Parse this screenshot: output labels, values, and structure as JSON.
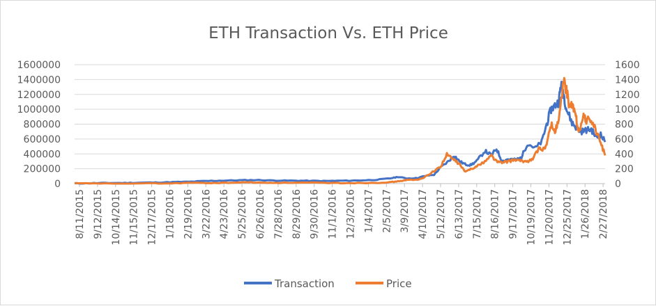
{
  "chart_data": {
    "type": "line",
    "title": "ETH Transaction Vs. ETH Price",
    "xlabel": "",
    "ylabel": "",
    "y2label": "",
    "x_tick_labels": [
      "8/11/2015",
      "9/12/2015",
      "10/14/2015",
      "11/15/2015",
      "12/17/2015",
      "1/18/2016",
      "2/19/2016",
      "3/22/2016",
      "4/23/2016",
      "5/25/2016",
      "6/26/2016",
      "7/28/2016",
      "8/29/2016",
      "9/30/2016",
      "11/1/2016",
      "12/3/2016",
      "1/4/2017",
      "2/5/2017",
      "3/9/2017",
      "4/10/2017",
      "5/12/2017",
      "6/13/2017",
      "7/15/2017",
      "8/16/2017",
      "9/17/2017",
      "10/19/2017",
      "11/20/2017",
      "12/25/2017",
      "1/26/2018",
      "2/27/2018"
    ],
    "x_range": [
      "2015-08-07",
      "2018-03-26"
    ],
    "ylim": [
      0,
      1600000
    ],
    "y_ticks": [
      "0",
      "200000",
      "400000",
      "600000",
      "800000",
      "1000000",
      "1200000",
      "1400000",
      "1600000"
    ],
    "y2lim": [
      0,
      1600
    ],
    "y2_ticks": [
      "0",
      "200",
      "400",
      "600",
      "800",
      "1000",
      "1200",
      "1400",
      "1600"
    ],
    "legend_position": "bottom",
    "grid": "horizontal",
    "series": [
      {
        "name": "Transaction",
        "axis": "left",
        "color": "#4472c4",
        "points": [
          [
            "2015-08-07",
            2000
          ],
          [
            "2015-09-01",
            5000
          ],
          [
            "2015-10-01",
            8000
          ],
          [
            "2015-11-01",
            9000
          ],
          [
            "2015-12-01",
            12000
          ],
          [
            "2016-01-01",
            15000
          ],
          [
            "2016-02-01",
            20000
          ],
          [
            "2016-03-01",
            25000
          ],
          [
            "2016-04-01",
            35000
          ],
          [
            "2016-05-01",
            40000
          ],
          [
            "2016-06-01",
            45000
          ],
          [
            "2016-07-01",
            48000
          ],
          [
            "2016-08-01",
            42000
          ],
          [
            "2016-09-01",
            40000
          ],
          [
            "2016-10-01",
            38000
          ],
          [
            "2016-11-01",
            35000
          ],
          [
            "2016-12-01",
            38000
          ],
          [
            "2017-01-01",
            42000
          ],
          [
            "2017-02-01",
            50000
          ],
          [
            "2017-03-01",
            70000
          ],
          [
            "2017-03-15",
            90000
          ],
          [
            "2017-04-01",
            70000
          ],
          [
            "2017-04-20",
            75000
          ],
          [
            "2017-05-01",
            100000
          ],
          [
            "2017-05-20",
            120000
          ],
          [
            "2017-06-01",
            220000
          ],
          [
            "2017-06-15",
            300000
          ],
          [
            "2017-06-25",
            380000
          ],
          [
            "2017-07-05",
            300000
          ],
          [
            "2017-07-15",
            260000
          ],
          [
            "2017-07-25",
            250000
          ],
          [
            "2017-08-05",
            300000
          ],
          [
            "2017-08-20",
            440000
          ],
          [
            "2017-09-01",
            380000
          ],
          [
            "2017-09-10",
            470000
          ],
          [
            "2017-09-20",
            300000
          ],
          [
            "2017-10-01",
            330000
          ],
          [
            "2017-10-15",
            320000
          ],
          [
            "2017-10-25",
            350000
          ],
          [
            "2017-11-05",
            540000
          ],
          [
            "2017-11-20",
            480000
          ],
          [
            "2017-12-01",
            560000
          ],
          [
            "2017-12-10",
            800000
          ],
          [
            "2017-12-18",
            1000000
          ],
          [
            "2017-12-25",
            1050000
          ],
          [
            "2018-01-01",
            1100000
          ],
          [
            "2018-01-05",
            1350000
          ],
          [
            "2018-01-10",
            1200000
          ],
          [
            "2018-01-15",
            1000000
          ],
          [
            "2018-01-25",
            820000
          ],
          [
            "2018-02-01",
            760000
          ],
          [
            "2018-02-10",
            700000
          ],
          [
            "2018-02-20",
            720000
          ],
          [
            "2018-03-01",
            730000
          ],
          [
            "2018-03-10",
            620000
          ],
          [
            "2018-03-18",
            660000
          ],
          [
            "2018-03-26",
            560000
          ]
        ]
      },
      {
        "name": "Price",
        "axis": "right",
        "color": "#ed7d31",
        "points": [
          [
            "2015-08-07",
            2
          ],
          [
            "2015-10-01",
            1
          ],
          [
            "2016-01-01",
            1
          ],
          [
            "2016-02-01",
            3
          ],
          [
            "2016-03-01",
            11
          ],
          [
            "2016-04-01",
            8
          ],
          [
            "2016-05-01",
            10
          ],
          [
            "2016-06-01",
            14
          ],
          [
            "2016-06-17",
            20
          ],
          [
            "2016-07-01",
            12
          ],
          [
            "2016-08-01",
            11
          ],
          [
            "2016-09-01",
            12
          ],
          [
            "2016-10-01",
            12
          ],
          [
            "2016-11-01",
            10
          ],
          [
            "2016-12-01",
            8
          ],
          [
            "2017-01-01",
            8
          ],
          [
            "2017-02-01",
            11
          ],
          [
            "2017-03-01",
            18
          ],
          [
            "2017-03-15",
            30
          ],
          [
            "2017-04-01",
            50
          ],
          [
            "2017-04-20",
            50
          ],
          [
            "2017-05-01",
            80
          ],
          [
            "2017-05-20",
            170
          ],
          [
            "2017-06-01",
            230
          ],
          [
            "2017-06-12",
            390
          ],
          [
            "2017-06-25",
            320
          ],
          [
            "2017-07-05",
            260
          ],
          [
            "2017-07-16",
            155
          ],
          [
            "2017-07-25",
            200
          ],
          [
            "2017-08-05",
            230
          ],
          [
            "2017-08-20",
            300
          ],
          [
            "2017-09-01",
            380
          ],
          [
            "2017-09-10",
            300
          ],
          [
            "2017-09-20",
            280
          ],
          [
            "2017-10-01",
            300
          ],
          [
            "2017-10-15",
            320
          ],
          [
            "2017-10-25",
            300
          ],
          [
            "2017-11-05",
            300
          ],
          [
            "2017-11-15",
            330
          ],
          [
            "2017-11-25",
            470
          ],
          [
            "2017-12-01",
            450
          ],
          [
            "2017-12-10",
            520
          ],
          [
            "2017-12-18",
            800
          ],
          [
            "2017-12-25",
            700
          ],
          [
            "2018-01-01",
            850
          ],
          [
            "2018-01-10",
            1380
          ],
          [
            "2018-01-15",
            1250
          ],
          [
            "2018-01-20",
            1050
          ],
          [
            "2018-01-26",
            1050
          ],
          [
            "2018-02-01",
            900
          ],
          [
            "2018-02-06",
            700
          ],
          [
            "2018-02-15",
            900
          ],
          [
            "2018-02-20",
            850
          ],
          [
            "2018-03-01",
            860
          ],
          [
            "2018-03-10",
            700
          ],
          [
            "2018-03-18",
            550
          ],
          [
            "2018-03-26",
            380
          ]
        ]
      }
    ]
  }
}
